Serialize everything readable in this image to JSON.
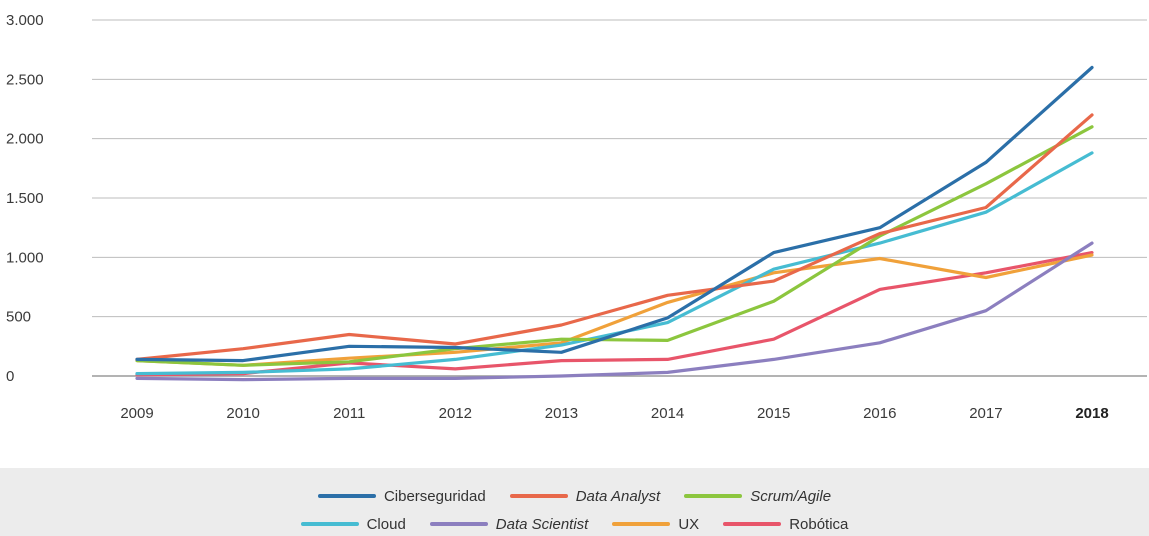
{
  "chart_data": {
    "type": "line",
    "title": "",
    "xlabel": "",
    "ylabel": "",
    "x": [
      "2009",
      "2010",
      "2011",
      "2012",
      "2013",
      "2014",
      "2015",
      "2016",
      "2017",
      "2018"
    ],
    "x_bold": [
      "2018"
    ],
    "ylim": [
      0,
      3000
    ],
    "yticks": [
      0,
      500,
      1000,
      1500,
      2000,
      2500,
      3000
    ],
    "ytick_labels": [
      "0",
      "500",
      "1.000",
      "1.500",
      "2.000",
      "2.500",
      "3.000"
    ],
    "grid": "horizontal",
    "legend_position": "bottom",
    "series": [
      {
        "name": "Ciberseguridad",
        "color": "#2b6fa8",
        "italic": false,
        "values": [
          140,
          130,
          250,
          240,
          200,
          490,
          1040,
          1250,
          1800,
          2600
        ]
      },
      {
        "name": "Data Analyst",
        "color": "#e8684a",
        "italic": true,
        "values": [
          140,
          230,
          350,
          270,
          430,
          680,
          800,
          1200,
          1420,
          2200
        ]
      },
      {
        "name": "Scrum/Agile",
        "color": "#8cc63e",
        "italic": true,
        "values": [
          130,
          90,
          120,
          230,
          310,
          300,
          630,
          1180,
          1620,
          2100
        ]
      },
      {
        "name": "Cloud",
        "color": "#46bcd2",
        "italic": false,
        "values": [
          20,
          30,
          60,
          140,
          260,
          450,
          900,
          1120,
          1380,
          1880
        ]
      },
      {
        "name": "Data Scientist",
        "color": "#8c7fbf",
        "italic": true,
        "values": [
          -20,
          -30,
          -20,
          -20,
          0,
          30,
          140,
          280,
          550,
          1120
        ]
      },
      {
        "name": "UX",
        "color": "#f0a13a",
        "italic": false,
        "values": [
          130,
          90,
          150,
          200,
          280,
          620,
          870,
          990,
          830,
          1020
        ]
      },
      {
        "name": "Robótica",
        "color": "#e8556a",
        "italic": false,
        "values": [
          10,
          20,
          110,
          60,
          130,
          140,
          310,
          730,
          870,
          1040
        ]
      }
    ]
  },
  "legend": {
    "rows": [
      [
        "Ciberseguridad",
        "Data Analyst",
        "Scrum/Agile"
      ],
      [
        "Cloud",
        "Data Scientist",
        "UX",
        "Robótica"
      ]
    ]
  }
}
